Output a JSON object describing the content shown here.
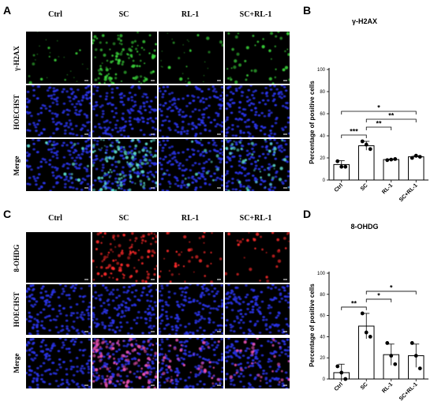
{
  "figure": {
    "columns": [
      "Ctrl",
      "SC",
      "RL-1",
      "SC+RL-1"
    ],
    "panels": [
      {
        "letter": "A",
        "rows": [
          {
            "label": "γ-H2AX",
            "stain": "green"
          },
          {
            "label": "HOECHST",
            "stain": "blue"
          },
          {
            "label": "Merge",
            "stain": "merge"
          }
        ],
        "intensity": [
          0.1,
          1.0,
          0.12,
          0.4
        ],
        "colors": {
          "signal": "#3ad43a",
          "nuclei": "#2a34e8",
          "merge": "#5ad8c8"
        }
      },
      {
        "letter": "C",
        "rows": [
          {
            "label": "8-OHDG",
            "stain": "red"
          },
          {
            "label": "HOECHST",
            "stain": "blue"
          },
          {
            "label": "Merge",
            "stain": "merge"
          }
        ],
        "intensity": [
          0.0,
          1.0,
          0.35,
          0.3
        ],
        "colors": {
          "signal": "#ff2a2a",
          "nuclei": "#2a34e8",
          "merge": "#e850b0"
        }
      }
    ]
  },
  "chart_data": [
    {
      "letter": "B",
      "type": "bar",
      "title": "γ-H2AX",
      "ylabel": "Percentage of positive cells",
      "categories": [
        "Ctrl",
        "SC",
        "RL-1",
        "SC+RL-1"
      ],
      "values": [
        14,
        31,
        18.5,
        21
      ],
      "errors": [
        3.5,
        4,
        0.5,
        1
      ],
      "points": [
        [
          17,
          12,
          12
        ],
        [
          35,
          32,
          28
        ],
        [
          18,
          18.5,
          19
        ],
        [
          20,
          22,
          21
        ]
      ],
      "ylim": [
        0,
        100
      ],
      "yticks": [
        0,
        20,
        40,
        60,
        80,
        100
      ],
      "significance": [
        {
          "from": 0,
          "to": 1,
          "label": "***"
        },
        {
          "from": 1,
          "to": 2,
          "label": "**"
        },
        {
          "from": 1,
          "to": 3,
          "label": "**"
        },
        {
          "from": 0,
          "to": 3,
          "label": "*"
        }
      ]
    },
    {
      "letter": "D",
      "type": "bar",
      "title": "8-OHDG",
      "ylabel": "Percentage of positive cells",
      "categories": [
        "Ctrl",
        "SC",
        "RL-1",
        "SC+RL-1"
      ],
      "values": [
        6,
        50,
        23,
        22
      ],
      "errors": [
        8,
        12,
        10,
        11
      ],
      "points": [
        [
          12,
          6,
          0
        ],
        [
          62,
          44,
          40
        ],
        [
          34,
          22,
          14
        ],
        [
          34,
          22,
          10
        ]
      ],
      "ylim": [
        0,
        100
      ],
      "yticks": [
        0,
        20,
        40,
        60,
        80,
        100
      ],
      "significance": [
        {
          "from": 0,
          "to": 1,
          "label": "**"
        },
        {
          "from": 1,
          "to": 2,
          "label": "*"
        },
        {
          "from": 1,
          "to": 3,
          "label": "*"
        }
      ]
    }
  ]
}
